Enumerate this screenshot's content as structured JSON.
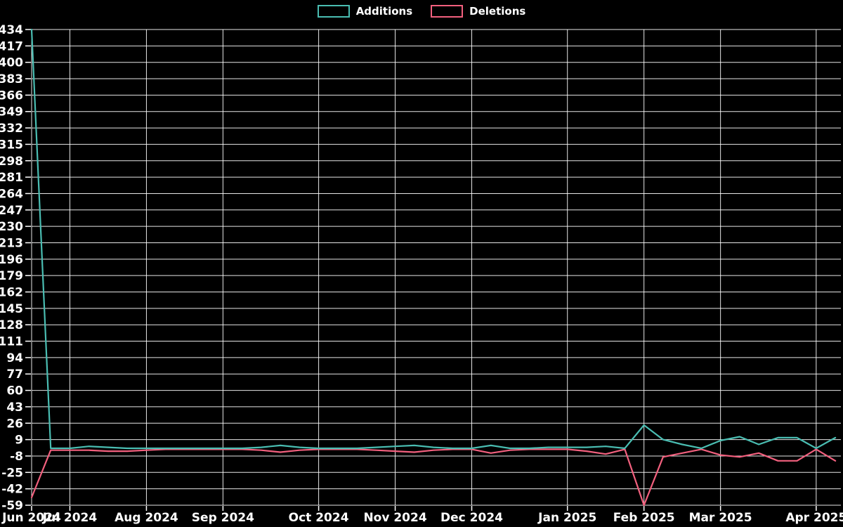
{
  "window": {
    "background": "#000000"
  },
  "legend": {
    "items": [
      {
        "label": "Additions",
        "color": "#4abdb2"
      },
      {
        "label": "Deletions",
        "color": "#f2607e"
      }
    ]
  },
  "chart_data": {
    "type": "line",
    "title": "",
    "xlabel": "",
    "ylabel": "",
    "x_unit": "weekly points from late Jun 2024 to mid Apr 2025 (index 0-42)",
    "point_count": 43,
    "series": [
      {
        "name": "Additions",
        "color": "#4abdb2",
        "values": [
          434,
          0,
          0,
          2,
          1,
          0,
          0,
          0,
          0,
          0,
          0,
          0,
          1,
          3,
          1,
          0,
          0,
          0,
          1,
          2,
          3,
          1,
          0,
          0,
          3,
          0,
          0,
          1,
          1,
          1,
          2,
          0,
          24,
          9,
          4,
          0,
          8,
          12,
          4,
          11,
          11,
          0,
          11
        ]
      },
      {
        "name": "Deletions",
        "color": "#f2607e",
        "values": [
          -51,
          -2,
          -2,
          -2,
          -3,
          -3,
          -2,
          -1,
          -1,
          -1,
          -1,
          -1,
          -2,
          -4,
          -2,
          -1,
          -1,
          -1,
          -2,
          -3,
          -4,
          -2,
          -1,
          -1,
          -5,
          -2,
          -1,
          -1,
          -1,
          -3,
          -6,
          -1,
          -59,
          -9,
          -5,
          -1,
          -7,
          -9,
          -5,
          -13,
          -13,
          -1,
          -13
        ]
      }
    ],
    "x_ticks": [
      {
        "label": "Jun 2024",
        "week": 0
      },
      {
        "label": "Jul 2024",
        "week": 2
      },
      {
        "label": "Aug 2024",
        "week": 6
      },
      {
        "label": "Sep 2024",
        "week": 10
      },
      {
        "label": "Oct 2024",
        "week": 15
      },
      {
        "label": "Nov 2024",
        "week": 19
      },
      {
        "label": "Dec 2024",
        "week": 23
      },
      {
        "label": "Jan 2025",
        "week": 28
      },
      {
        "label": "Feb 2025",
        "week": 32
      },
      {
        "label": "Mar 2025",
        "week": 36
      },
      {
        "label": "Apr 2025",
        "week": 41
      }
    ],
    "y_ticks": [
      434,
      417,
      400,
      383,
      366,
      349,
      332,
      315,
      298,
      281,
      264,
      247,
      230,
      213,
      196,
      179,
      162,
      145,
      128,
      111,
      94,
      77,
      60,
      43,
      26,
      9,
      -8,
      -25,
      -42,
      -59
    ],
    "ylim": [
      -59,
      434
    ],
    "grid": true,
    "legend_position": "top-center",
    "colors": {
      "background": "#000000",
      "grid": "#ffffff",
      "text": "#ffffff"
    }
  }
}
